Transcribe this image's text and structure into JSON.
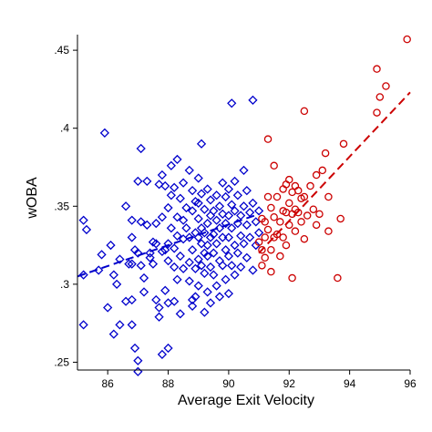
{
  "chart_data": {
    "type": "scatter",
    "title": "",
    "xlabel": "Average Exit Velocity",
    "ylabel": "wOBA",
    "xlim": [
      85,
      96
    ],
    "ylim": [
      0.245,
      0.46
    ],
    "grid": false,
    "legend": "none",
    "x_ticks": [
      86,
      88,
      90,
      92,
      94,
      96
    ],
    "y_ticks": [
      ".25",
      ".3",
      ".35",
      ".4",
      ".45"
    ],
    "y_tick_values": [
      0.25,
      0.3,
      0.35,
      0.4,
      0.45
    ],
    "series": [
      {
        "marker": "diamond",
        "color": "#0000cc",
        "points": [
          [
            85.2,
            0.341
          ],
          [
            85.3,
            0.335
          ],
          [
            85.2,
            0.306
          ],
          [
            85.2,
            0.274
          ],
          [
            85.8,
            0.319
          ],
          [
            85.9,
            0.397
          ],
          [
            85.7,
            0.309
          ],
          [
            86.1,
            0.325
          ],
          [
            86.0,
            0.285
          ],
          [
            86.2,
            0.306
          ],
          [
            86.3,
            0.3
          ],
          [
            86.4,
            0.274
          ],
          [
            86.2,
            0.268
          ],
          [
            86.4,
            0.316
          ],
          [
            86.6,
            0.35
          ],
          [
            86.6,
            0.289
          ],
          [
            86.7,
            0.313
          ],
          [
            86.8,
            0.33
          ],
          [
            86.8,
            0.341
          ],
          [
            86.8,
            0.313
          ],
          [
            86.8,
            0.29
          ],
          [
            86.8,
            0.274
          ],
          [
            86.9,
            0.259
          ],
          [
            87.0,
            0.366
          ],
          [
            87.0,
            0.32
          ],
          [
            86.9,
            0.322
          ],
          [
            87.1,
            0.387
          ],
          [
            87.1,
            0.34
          ],
          [
            87.1,
            0.312
          ],
          [
            87.2,
            0.304
          ],
          [
            87.2,
            0.295
          ],
          [
            87.0,
            0.251
          ],
          [
            87.0,
            0.244
          ],
          [
            87.3,
            0.366
          ],
          [
            87.3,
            0.338
          ],
          [
            87.4,
            0.32
          ],
          [
            87.4,
            0.317
          ],
          [
            87.5,
            0.327
          ],
          [
            87.5,
            0.313
          ],
          [
            87.6,
            0.339
          ],
          [
            87.6,
            0.326
          ],
          [
            87.7,
            0.364
          ],
          [
            87.6,
            0.29
          ],
          [
            87.7,
            0.285
          ],
          [
            87.7,
            0.279
          ],
          [
            87.8,
            0.37
          ],
          [
            87.8,
            0.343
          ],
          [
            87.8,
            0.321
          ],
          [
            87.9,
            0.363
          ],
          [
            87.9,
            0.322
          ],
          [
            87.9,
            0.296
          ],
          [
            87.8,
            0.255
          ],
          [
            88.0,
            0.349
          ],
          [
            88.0,
            0.326
          ],
          [
            88.0,
            0.315
          ],
          [
            88.0,
            0.288
          ],
          [
            88.1,
            0.376
          ],
          [
            88.1,
            0.357
          ],
          [
            88.1,
            0.336
          ],
          [
            88.0,
            0.259
          ],
          [
            88.2,
            0.362
          ],
          [
            88.2,
            0.323
          ],
          [
            88.2,
            0.311
          ],
          [
            88.2,
            0.289
          ],
          [
            88.3,
            0.38
          ],
          [
            88.3,
            0.343
          ],
          [
            88.3,
            0.331
          ],
          [
            88.3,
            0.303
          ],
          [
            88.4,
            0.355
          ],
          [
            88.4,
            0.318
          ],
          [
            88.4,
            0.281
          ],
          [
            88.5,
            0.365
          ],
          [
            88.5,
            0.341
          ],
          [
            88.5,
            0.329
          ],
          [
            88.5,
            0.31
          ],
          [
            88.6,
            0.349
          ],
          [
            88.6,
            0.336
          ],
          [
            88.7,
            0.373
          ],
          [
            88.7,
            0.33
          ],
          [
            88.7,
            0.314
          ],
          [
            88.7,
            0.302
          ],
          [
            88.8,
            0.36
          ],
          [
            88.8,
            0.347
          ],
          [
            88.8,
            0.322
          ],
          [
            88.8,
            0.29
          ],
          [
            88.8,
            0.286
          ],
          [
            88.9,
            0.353
          ],
          [
            88.9,
            0.333
          ],
          [
            88.9,
            0.31
          ],
          [
            88.9,
            0.292
          ],
          [
            89.0,
            0.368
          ],
          [
            89.0,
            0.352
          ],
          [
            89.0,
            0.342
          ],
          [
            89.0,
            0.33
          ],
          [
            89.0,
            0.316
          ],
          [
            89.0,
            0.299
          ],
          [
            89.1,
            0.358
          ],
          [
            89.1,
            0.336
          ],
          [
            89.1,
            0.326
          ],
          [
            89.1,
            0.312
          ],
          [
            89.1,
            0.39
          ],
          [
            89.2,
            0.348
          ],
          [
            89.2,
            0.333
          ],
          [
            89.2,
            0.32
          ],
          [
            89.2,
            0.307
          ],
          [
            89.2,
            0.282
          ],
          [
            89.3,
            0.361
          ],
          [
            89.3,
            0.339
          ],
          [
            89.3,
            0.325
          ],
          [
            89.3,
            0.318
          ],
          [
            89.3,
            0.295
          ],
          [
            89.4,
            0.354
          ],
          [
            89.4,
            0.344
          ],
          [
            89.4,
            0.33
          ],
          [
            89.4,
            0.311
          ],
          [
            89.4,
            0.288
          ],
          [
            89.5,
            0.347
          ],
          [
            89.5,
            0.332
          ],
          [
            89.5,
            0.32
          ],
          [
            89.5,
            0.306
          ],
          [
            89.6,
            0.357
          ],
          [
            89.6,
            0.341
          ],
          [
            89.6,
            0.326
          ],
          [
            89.6,
            0.299
          ],
          [
            89.7,
            0.35
          ],
          [
            89.7,
            0.336
          ],
          [
            89.7,
            0.315
          ],
          [
            89.7,
            0.292
          ],
          [
            89.8,
            0.365
          ],
          [
            89.8,
            0.345
          ],
          [
            89.8,
            0.33
          ],
          [
            89.8,
            0.312
          ],
          [
            89.9,
            0.356
          ],
          [
            89.9,
            0.339
          ],
          [
            89.9,
            0.322
          ],
          [
            89.9,
            0.303
          ],
          [
            90.0,
            0.361
          ],
          [
            90.0,
            0.344
          ],
          [
            90.0,
            0.33
          ],
          [
            90.0,
            0.318
          ],
          [
            90.0,
            0.294
          ],
          [
            90.1,
            0.416
          ],
          [
            90.1,
            0.351
          ],
          [
            90.1,
            0.336
          ],
          [
            90.1,
            0.312
          ],
          [
            90.2,
            0.366
          ],
          [
            90.2,
            0.347
          ],
          [
            90.2,
            0.325
          ],
          [
            90.2,
            0.306
          ],
          [
            90.3,
            0.357
          ],
          [
            90.3,
            0.339
          ],
          [
            90.3,
            0.32
          ],
          [
            90.4,
            0.344
          ],
          [
            90.4,
            0.331
          ],
          [
            90.4,
            0.311
          ],
          [
            90.5,
            0.373
          ],
          [
            90.5,
            0.35
          ],
          [
            90.5,
            0.326
          ],
          [
            90.6,
            0.36
          ],
          [
            90.6,
            0.338
          ],
          [
            90.6,
            0.317
          ],
          [
            90.7,
            0.346
          ],
          [
            90.7,
            0.33
          ],
          [
            90.8,
            0.418
          ],
          [
            90.8,
            0.352
          ],
          [
            90.8,
            0.309
          ],
          [
            90.9,
            0.34
          ],
          [
            90.9,
            0.325
          ],
          [
            91.0,
            0.347
          ],
          [
            91.0,
            0.333
          ]
        ]
      },
      {
        "marker": "circle",
        "color": "#cc0000",
        "points": [
          [
            91.0,
            0.327
          ],
          [
            91.1,
            0.342
          ],
          [
            91.1,
            0.322
          ],
          [
            91.1,
            0.312
          ],
          [
            91.2,
            0.34
          ],
          [
            91.2,
            0.33
          ],
          [
            91.2,
            0.317
          ],
          [
            91.3,
            0.393
          ],
          [
            91.3,
            0.356
          ],
          [
            91.3,
            0.335
          ],
          [
            91.4,
            0.349
          ],
          [
            91.4,
            0.322
          ],
          [
            91.4,
            0.308
          ],
          [
            91.5,
            0.376
          ],
          [
            91.5,
            0.343
          ],
          [
            91.5,
            0.33
          ],
          [
            91.6,
            0.356
          ],
          [
            91.6,
            0.332
          ],
          [
            91.7,
            0.34
          ],
          [
            91.7,
            0.318
          ],
          [
            91.8,
            0.361
          ],
          [
            91.8,
            0.347
          ],
          [
            91.8,
            0.33
          ],
          [
            91.9,
            0.364
          ],
          [
            91.9,
            0.346
          ],
          [
            91.9,
            0.325
          ],
          [
            92.0,
            0.367
          ],
          [
            92.0,
            0.352
          ],
          [
            92.0,
            0.338
          ],
          [
            92.1,
            0.359
          ],
          [
            92.1,
            0.345
          ],
          [
            92.1,
            0.304
          ],
          [
            92.2,
            0.363
          ],
          [
            92.2,
            0.348
          ],
          [
            92.2,
            0.334
          ],
          [
            92.3,
            0.36
          ],
          [
            92.3,
            0.346
          ],
          [
            92.4,
            0.355
          ],
          [
            92.4,
            0.34
          ],
          [
            92.5,
            0.411
          ],
          [
            92.5,
            0.356
          ],
          [
            92.5,
            0.329
          ],
          [
            92.6,
            0.344
          ],
          [
            92.7,
            0.363
          ],
          [
            92.8,
            0.348
          ],
          [
            92.9,
            0.37
          ],
          [
            92.9,
            0.338
          ],
          [
            93.0,
            0.345
          ],
          [
            93.1,
            0.373
          ],
          [
            93.2,
            0.384
          ],
          [
            93.3,
            0.356
          ],
          [
            93.3,
            0.334
          ],
          [
            93.6,
            0.304
          ],
          [
            93.7,
            0.342
          ],
          [
            93.8,
            0.39
          ],
          [
            94.9,
            0.41
          ],
          [
            94.9,
            0.438
          ],
          [
            95.0,
            0.42
          ],
          [
            95.2,
            0.427
          ],
          [
            95.9,
            0.457
          ]
        ]
      }
    ],
    "fit_lines": [
      {
        "color": "#0000cc",
        "x": [
          85.0,
          91.0
        ],
        "y": [
          0.305,
          0.345
        ]
      },
      {
        "color": "#cc0000",
        "x": [
          91.0,
          96.0
        ],
        "y": [
          0.32,
          0.423
        ]
      }
    ]
  }
}
